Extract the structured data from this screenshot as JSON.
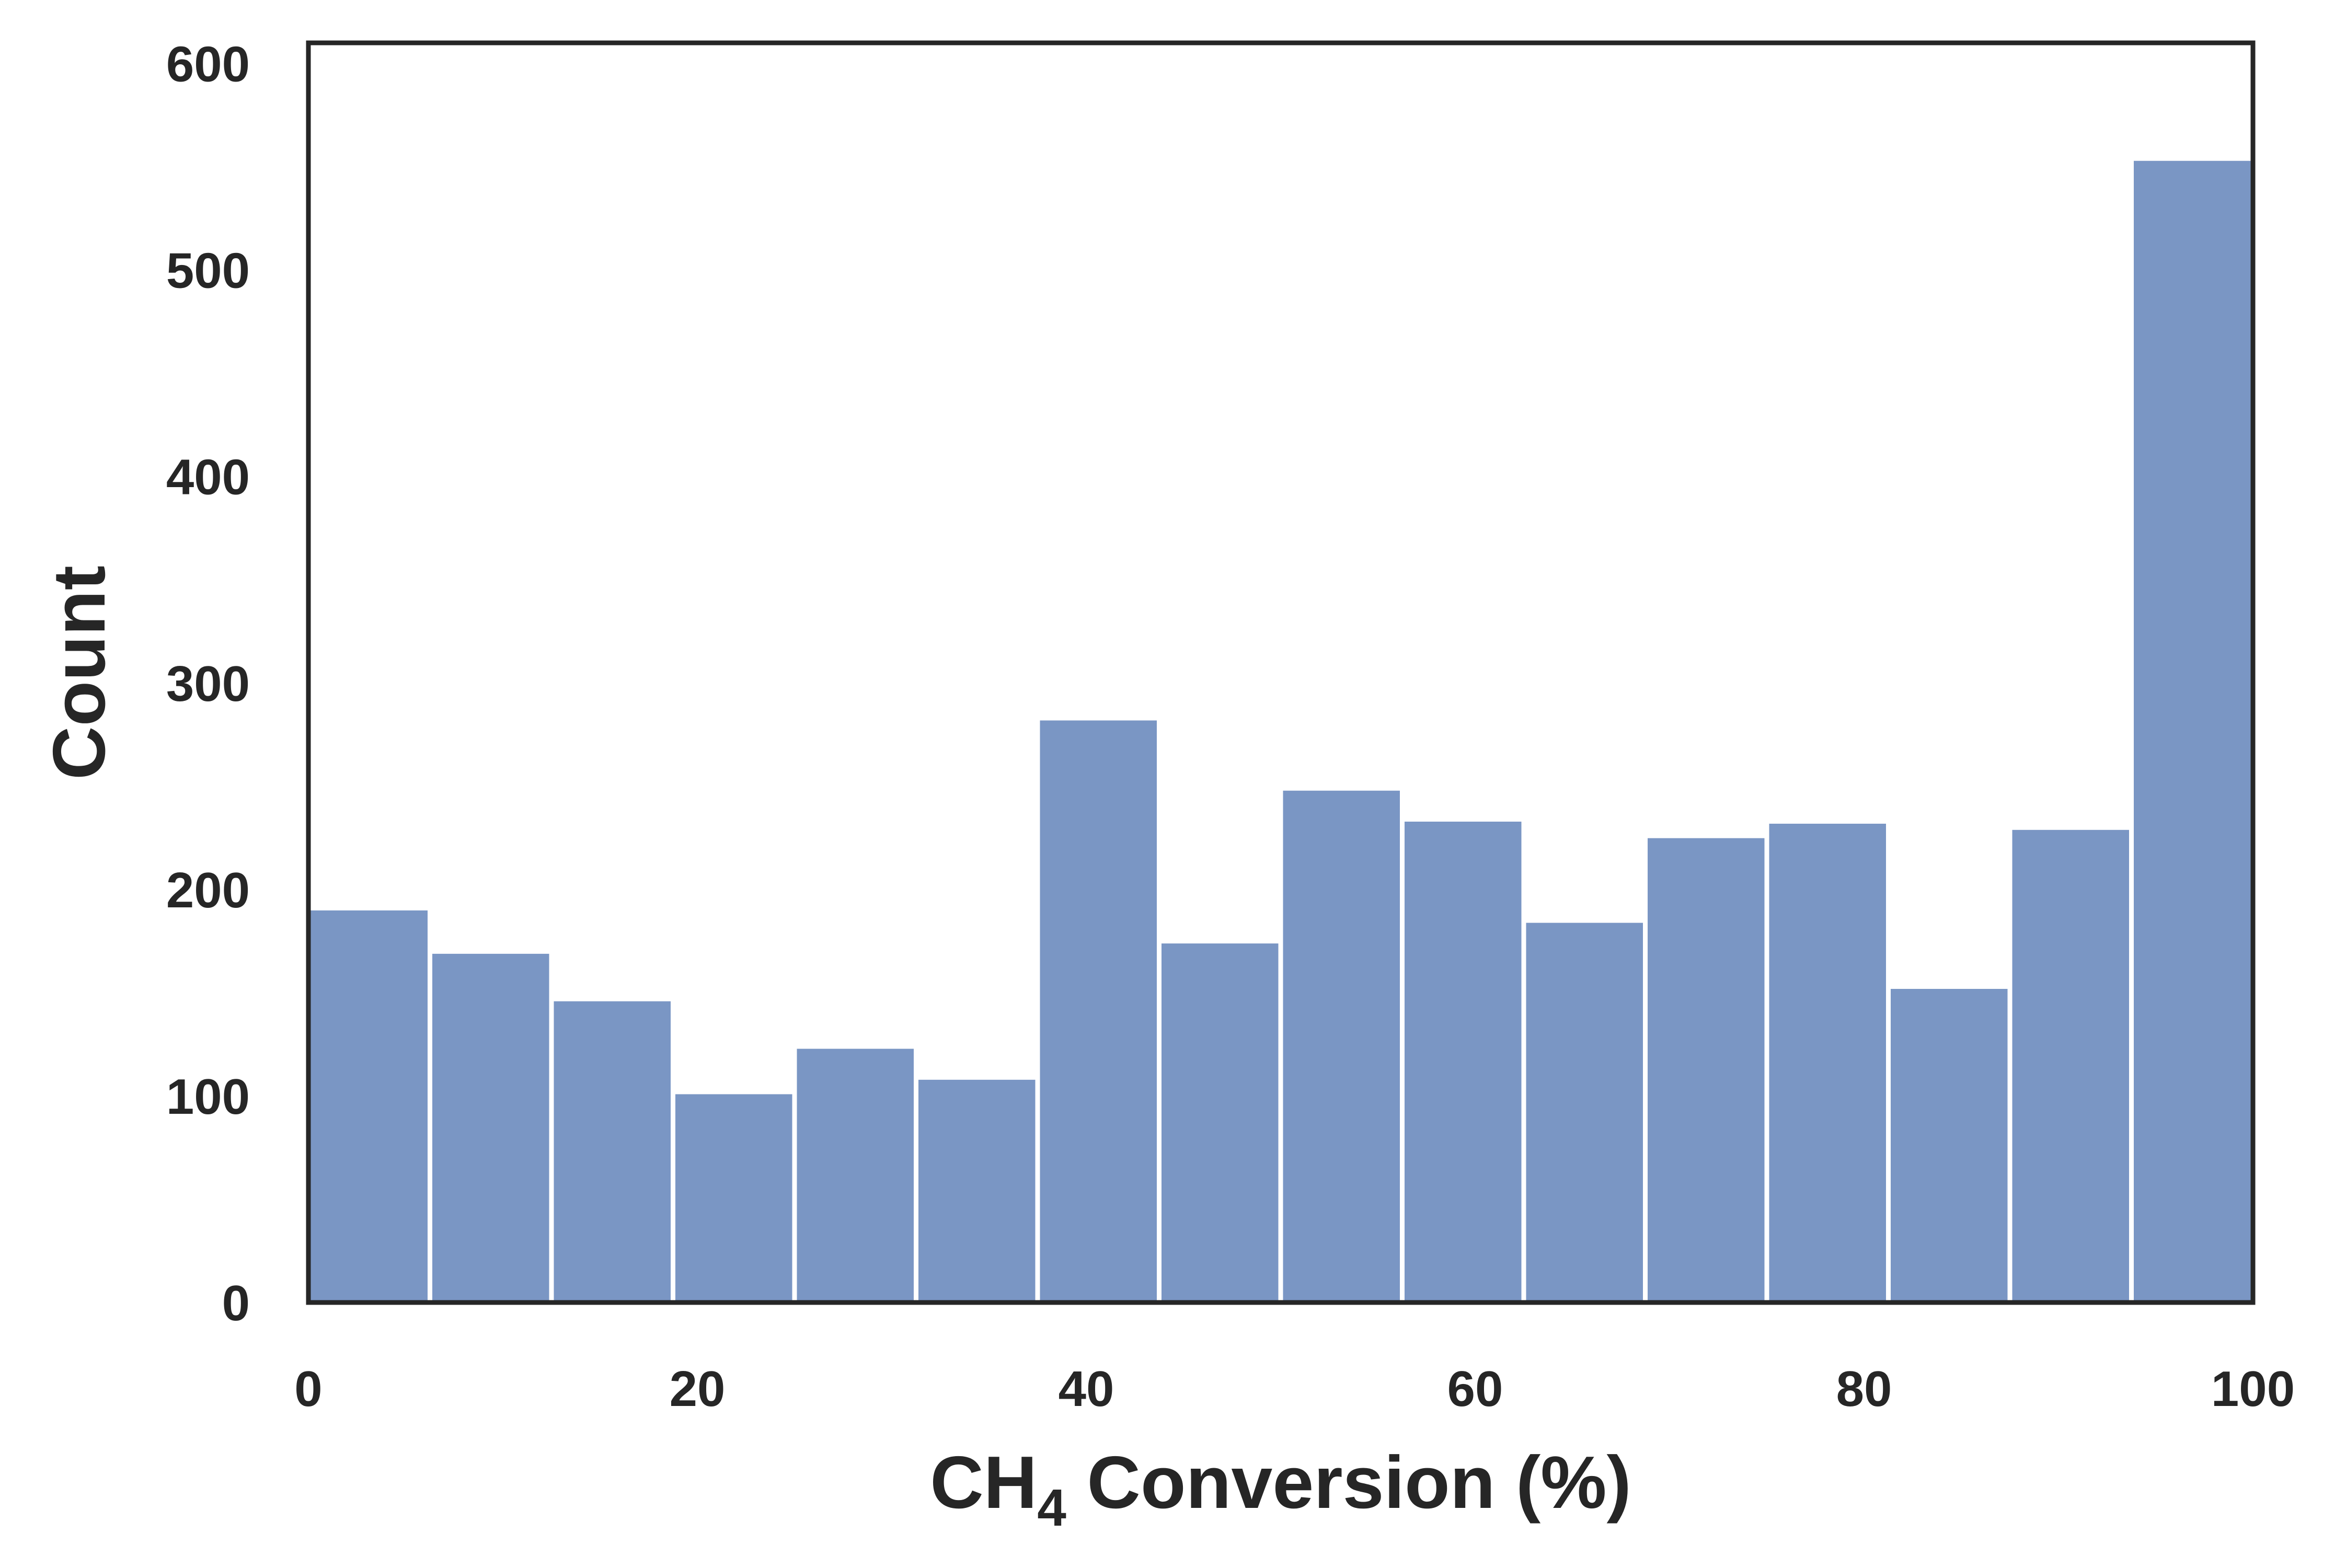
{
  "chart_data": {
    "type": "bar",
    "title": "",
    "xlabel": "CH4 Conversion (%)",
    "xlabel_main": "CH",
    "xlabel_sub": "4",
    "xlabel_rest": " Conversion (%)",
    "ylabel": "Count",
    "xlim": [
      0,
      100
    ],
    "ylim": [
      0,
      610
    ],
    "xticks": [
      0,
      20,
      40,
      60,
      80,
      100
    ],
    "xtick_labels": [
      "0",
      "20",
      "40",
      "60",
      "80",
      "100"
    ],
    "yticks": [
      0,
      100,
      200,
      300,
      400,
      500,
      600
    ],
    "ytick_labels": [
      "0",
      "100",
      "200",
      "300",
      "400",
      "500",
      "600"
    ],
    "grid": false,
    "legend": "none",
    "bin_width": 6.25,
    "bins": [
      {
        "x0": 0,
        "x1": 6.25,
        "value": 191
      },
      {
        "x0": 6.25,
        "x1": 12.5,
        "value": 170
      },
      {
        "x0": 12.5,
        "x1": 18.75,
        "value": 147
      },
      {
        "x0": 18.75,
        "x1": 25,
        "value": 102
      },
      {
        "x0": 25,
        "x1": 31.25,
        "value": 124
      },
      {
        "x0": 31.25,
        "x1": 37.5,
        "value": 109
      },
      {
        "x0": 37.5,
        "x1": 43.75,
        "value": 283
      },
      {
        "x0": 43.75,
        "x1": 50,
        "value": 175
      },
      {
        "x0": 50,
        "x1": 56.25,
        "value": 249
      },
      {
        "x0": 56.25,
        "x1": 62.5,
        "value": 234
      },
      {
        "x0": 62.5,
        "x1": 68.75,
        "value": 185
      },
      {
        "x0": 68.75,
        "x1": 75,
        "value": 226
      },
      {
        "x0": 75,
        "x1": 81.25,
        "value": 233
      },
      {
        "x0": 81.25,
        "x1": 87.5,
        "value": 153
      },
      {
        "x0": 87.5,
        "x1": 93.75,
        "value": 230
      },
      {
        "x0": 93.75,
        "x1": 100,
        "value": 554
      }
    ],
    "colors": {
      "bar": "#7a96c4",
      "bar_edge": "#ffffff",
      "axes": "#262626"
    }
  }
}
